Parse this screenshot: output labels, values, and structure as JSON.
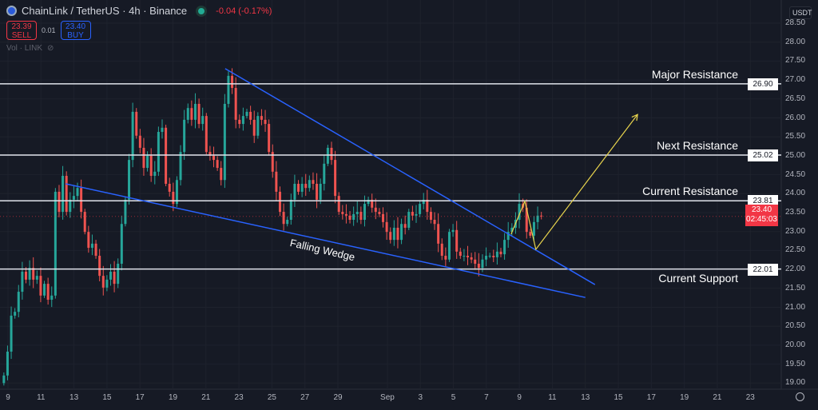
{
  "header": {
    "symbol": "ChainLink / TetherUS · 4h · Binance",
    "change": "-0.04 (-0.17%)",
    "sell_price": "23.39",
    "sell_label": "SELL",
    "spread": "0.01",
    "buy_price": "23.40",
    "buy_label": "BUY",
    "volume_label": "Vol · LINK"
  },
  "currency": "USDT",
  "current_price": {
    "value": "23.40",
    "countdown": "02:45:03",
    "color": "#f23645"
  },
  "colors": {
    "up": "#26a69a",
    "down": "#ef5350",
    "trendline": "#2962ff",
    "projection": "#e8d44d",
    "level": "#e0e3eb",
    "background": "#161a25"
  },
  "chart_data": {
    "type": "candlestick",
    "title": "ChainLink / TetherUS · 4h · Binance",
    "ylim": [
      18.8,
      28.65
    ],
    "y_ticks": [
      "28.50",
      "28.00",
      "27.50",
      "27.00",
      "26.50",
      "26.00",
      "25.50",
      "25.00",
      "24.50",
      "24.00",
      "23.50",
      "23.00",
      "22.50",
      "22.00",
      "21.50",
      "21.00",
      "20.50",
      "20.00",
      "19.50",
      "19.00"
    ],
    "x_ticks": [
      {
        "date": "08-09",
        "label": "9"
      },
      {
        "date": "08-11",
        "label": "11"
      },
      {
        "date": "08-13",
        "label": "13"
      },
      {
        "date": "08-15",
        "label": "15"
      },
      {
        "date": "08-17",
        "label": "17"
      },
      {
        "date": "08-19",
        "label": "19"
      },
      {
        "date": "08-21",
        "label": "21"
      },
      {
        "date": "08-23",
        "label": "23"
      },
      {
        "date": "08-25",
        "label": "25"
      },
      {
        "date": "08-27",
        "label": "27"
      },
      {
        "date": "08-29",
        "label": "29"
      },
      {
        "date": "09-01",
        "label": "Sep"
      },
      {
        "date": "09-03",
        "label": "3"
      },
      {
        "date": "09-05",
        "label": "5"
      },
      {
        "date": "09-07",
        "label": "7"
      },
      {
        "date": "09-09",
        "label": "9"
      },
      {
        "date": "09-11",
        "label": "11"
      },
      {
        "date": "09-13",
        "label": "13"
      },
      {
        "date": "09-15",
        "label": "15"
      },
      {
        "date": "09-17",
        "label": "17"
      },
      {
        "date": "09-19",
        "label": "19"
      },
      {
        "date": "09-21",
        "label": "21"
      },
      {
        "date": "09-23",
        "label": "23"
      }
    ],
    "candle_range": [
      "08-08 18:00",
      "09-10 08:00"
    ],
    "closes": [
      19.2,
      19.83,
      20.78,
      20.88,
      21.41,
      21.94,
      21.73,
      22.04,
      21.73,
      21.83,
      21.31,
      21.62,
      21.2,
      21.31,
      24.05,
      23.52,
      24.47,
      23.52,
      23.84,
      23.94,
      24.15,
      23.52,
      22.99,
      22.57,
      22.68,
      22.36,
      21.83,
      21.52,
      21.73,
      21.94,
      21.62,
      22.15,
      23.2,
      23.84,
      24.89,
      26.16,
      25.53,
      25.21,
      24.68,
      25.0,
      24.47,
      24.58,
      25.63,
      25.74,
      24.26,
      24.05,
      23.73,
      24.36,
      25.1,
      25.95,
      26.26,
      25.95,
      26.37,
      25.84,
      26.05,
      25.1,
      25.0,
      24.89,
      24.68,
      24.36,
      26.37,
      27.11,
      26.79,
      25.95,
      25.84,
      26.05,
      26.16,
      25.95,
      25.53,
      26.05,
      25.95,
      25.84,
      25.1,
      24.58,
      24.05,
      23.52,
      23.2,
      23.31,
      23.84,
      24.26,
      24.05,
      24.26,
      24.15,
      24.36,
      24.26,
      23.84,
      24.26,
      24.79,
      25.21,
      24.89,
      23.94,
      23.52,
      23.46,
      23.42,
      23.31,
      23.46,
      23.52,
      23.31,
      23.73,
      23.84,
      23.63,
      23.52,
      23.46,
      23.25,
      22.99,
      22.78,
      23.1,
      22.78,
      23.2,
      23.1,
      23.52,
      23.42,
      23.46,
      23.73,
      23.84,
      23.52,
      23.31,
      23.2,
      22.68,
      22.36,
      22.26,
      22.99,
      23.04,
      22.47,
      22.36,
      22.36,
      22.32,
      22.26,
      22.15,
      22.04,
      22.26,
      22.36,
      22.36,
      22.32,
      22.47,
      22.4,
      22.78,
      22.99,
      23.1,
      23.31,
      23.73,
      23.63,
      22.99,
      22.89,
      23.25,
      23.42,
      23.4
    ],
    "levels": [
      {
        "price": 26.9,
        "label": "26.90",
        "name": "Major Resistance"
      },
      {
        "price": 25.02,
        "label": "25.02",
        "name": "Next Resistance"
      },
      {
        "price": 23.81,
        "label": "23.81",
        "name": "Current Resistance"
      },
      {
        "price": 22.01,
        "label": "22.01",
        "name": "Current Support"
      }
    ],
    "trendlines": [
      {
        "from": [
          "08-22 04:00",
          27.3
        ],
        "to": [
          "09-13 14:00",
          21.6
        ]
      },
      {
        "from": [
          "08-12 12:00",
          24.26
        ],
        "to": [
          "09-13 00:00",
          21.26
        ]
      }
    ],
    "projection": [
      [
        "09-08 12:00",
        22.93
      ],
      [
        "09-09 08:00",
        23.8
      ],
      [
        "09-10 00:00",
        22.53
      ],
      [
        "09-16 04:00",
        26.09
      ]
    ],
    "pattern_label": "Falling Wedge"
  }
}
